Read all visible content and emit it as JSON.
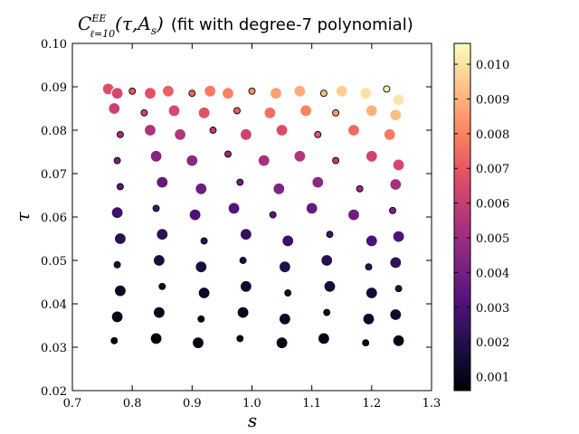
{
  "chart_data": {
    "type": "scatter",
    "title_math": {
      "symbol": "C",
      "superscript": "EE",
      "subscript": "ℓ=10",
      "args": "(τ,A",
      "args_sub": "s",
      "args_close": ")"
    },
    "title_text": "(fit with degree-7 polynomial)",
    "xlabel": "s",
    "ylabel": "τ",
    "xlim": [
      0.7,
      1.3
    ],
    "ylim": [
      0.02,
      0.1
    ],
    "x_ticks": [
      0.7,
      0.8,
      0.9,
      1.0,
      1.1,
      1.2,
      1.3
    ],
    "x_tick_labels": [
      "0.7",
      "0.8",
      "0.9",
      "1.0",
      "1.1",
      "1.2",
      "1.3"
    ],
    "y_ticks": [
      0.02,
      0.03,
      0.04,
      0.05,
      0.06,
      0.07,
      0.08,
      0.09,
      0.1
    ],
    "y_tick_labels": [
      "0.02",
      "0.03",
      "0.04",
      "0.05",
      "0.06",
      "0.07",
      "0.08",
      "0.09",
      "0.10"
    ],
    "colorbar": {
      "colormap": "magma",
      "min": 0.0006,
      "max": 0.0106,
      "ticks": [
        0.001,
        0.002,
        0.003,
        0.004,
        0.005,
        0.006,
        0.007,
        0.008,
        0.009,
        0.01
      ],
      "tick_labels": [
        "0.001",
        "0.002",
        "0.003",
        "0.004",
        "0.005",
        "0.006",
        "0.007",
        "0.008",
        "0.009",
        "0.010"
      ]
    },
    "colormap_stops": [
      "#000004",
      "#1c1044",
      "#4f127b",
      "#812581",
      "#b5367a",
      "#e55064",
      "#fb8761",
      "#fec287",
      "#fcfdbf"
    ],
    "grid": false,
    "legend": "none",
    "points": [
      [
        0.76,
        0.0895,
        0.0067
      ],
      [
        0.775,
        0.0885,
        0.0064
      ],
      [
        0.8,
        0.089,
        0.007
      ],
      [
        0.83,
        0.0885,
        0.0068
      ],
      [
        0.86,
        0.089,
        0.0072
      ],
      [
        0.9,
        0.0885,
        0.0074
      ],
      [
        0.93,
        0.089,
        0.0078
      ],
      [
        0.96,
        0.0885,
        0.008
      ],
      [
        1.0,
        0.089,
        0.0083
      ],
      [
        1.04,
        0.0885,
        0.0086
      ],
      [
        1.08,
        0.089,
        0.0089
      ],
      [
        1.12,
        0.0885,
        0.0093
      ],
      [
        1.15,
        0.089,
        0.0096
      ],
      [
        1.19,
        0.0885,
        0.01
      ],
      [
        1.225,
        0.0895,
        0.0104
      ],
      [
        1.245,
        0.087,
        0.0101
      ],
      [
        0.77,
        0.085,
        0.0061
      ],
      [
        0.82,
        0.084,
        0.0062
      ],
      [
        0.87,
        0.0845,
        0.0065
      ],
      [
        0.92,
        0.084,
        0.0068
      ],
      [
        0.975,
        0.0845,
        0.0072
      ],
      [
        1.03,
        0.084,
        0.0076
      ],
      [
        1.09,
        0.0845,
        0.008
      ],
      [
        1.14,
        0.084,
        0.0085
      ],
      [
        1.2,
        0.0845,
        0.009
      ],
      [
        1.24,
        0.0835,
        0.0093
      ],
      [
        0.78,
        0.079,
        0.0052
      ],
      [
        0.83,
        0.08,
        0.0054
      ],
      [
        0.88,
        0.079,
        0.0056
      ],
      [
        0.935,
        0.08,
        0.0059
      ],
      [
        0.99,
        0.079,
        0.0062
      ],
      [
        1.05,
        0.08,
        0.0066
      ],
      [
        1.11,
        0.079,
        0.0069
      ],
      [
        1.17,
        0.08,
        0.0074
      ],
      [
        1.23,
        0.079,
        0.0078
      ],
      [
        0.775,
        0.073,
        0.0042
      ],
      [
        0.84,
        0.074,
        0.0044
      ],
      [
        0.9,
        0.073,
        0.0046
      ],
      [
        0.96,
        0.0745,
        0.0049
      ],
      [
        1.02,
        0.073,
        0.0052
      ],
      [
        1.08,
        0.074,
        0.0055
      ],
      [
        1.14,
        0.073,
        0.0059
      ],
      [
        1.2,
        0.074,
        0.0063
      ],
      [
        1.245,
        0.072,
        0.0064
      ],
      [
        0.78,
        0.067,
        0.0034
      ],
      [
        0.85,
        0.068,
        0.0036
      ],
      [
        0.915,
        0.0665,
        0.0038
      ],
      [
        0.98,
        0.068,
        0.004
      ],
      [
        1.045,
        0.0665,
        0.0043
      ],
      [
        1.11,
        0.068,
        0.0046
      ],
      [
        1.18,
        0.0665,
        0.0049
      ],
      [
        1.24,
        0.0675,
        0.0052
      ],
      [
        0.775,
        0.061,
        0.0027
      ],
      [
        0.84,
        0.062,
        0.0029
      ],
      [
        0.905,
        0.0605,
        0.003
      ],
      [
        0.97,
        0.062,
        0.0032
      ],
      [
        1.035,
        0.0605,
        0.0034
      ],
      [
        1.1,
        0.062,
        0.0036
      ],
      [
        1.17,
        0.0605,
        0.0039
      ],
      [
        1.235,
        0.0615,
        0.0041
      ],
      [
        0.78,
        0.055,
        0.0021
      ],
      [
        0.85,
        0.056,
        0.0022
      ],
      [
        0.92,
        0.0545,
        0.0023
      ],
      [
        0.99,
        0.056,
        0.0025
      ],
      [
        1.06,
        0.0545,
        0.0026
      ],
      [
        1.13,
        0.056,
        0.0028
      ],
      [
        1.2,
        0.0545,
        0.003
      ],
      [
        1.245,
        0.0555,
        0.0031
      ],
      [
        0.775,
        0.049,
        0.0016
      ],
      [
        0.845,
        0.05,
        0.0017
      ],
      [
        0.915,
        0.0485,
        0.0018
      ],
      [
        0.985,
        0.05,
        0.0019
      ],
      [
        1.055,
        0.0485,
        0.002
      ],
      [
        1.125,
        0.05,
        0.0021
      ],
      [
        1.195,
        0.0485,
        0.0022
      ],
      [
        1.24,
        0.0495,
        0.0023
      ],
      [
        0.78,
        0.043,
        0.0012
      ],
      [
        0.85,
        0.044,
        0.0013
      ],
      [
        0.92,
        0.0425,
        0.0013
      ],
      [
        0.99,
        0.044,
        0.0014
      ],
      [
        1.06,
        0.0425,
        0.0015
      ],
      [
        1.13,
        0.044,
        0.0016
      ],
      [
        1.2,
        0.0425,
        0.0016
      ],
      [
        1.245,
        0.0435,
        0.0017
      ],
      [
        0.775,
        0.037,
        0.0009
      ],
      [
        0.845,
        0.038,
        0.001
      ],
      [
        0.915,
        0.0365,
        0.001
      ],
      [
        0.985,
        0.038,
        0.0011
      ],
      [
        1.055,
        0.0365,
        0.0011
      ],
      [
        1.125,
        0.038,
        0.0012
      ],
      [
        1.195,
        0.0365,
        0.0012
      ],
      [
        1.24,
        0.0375,
        0.0013
      ],
      [
        0.77,
        0.0315,
        0.0007
      ],
      [
        0.84,
        0.032,
        0.0008
      ],
      [
        0.91,
        0.031,
        0.0008
      ],
      [
        0.98,
        0.032,
        0.0008
      ],
      [
        1.05,
        0.031,
        0.0009
      ],
      [
        1.12,
        0.032,
        0.0009
      ],
      [
        1.19,
        0.031,
        0.001
      ],
      [
        1.245,
        0.0315,
        0.001
      ]
    ]
  }
}
